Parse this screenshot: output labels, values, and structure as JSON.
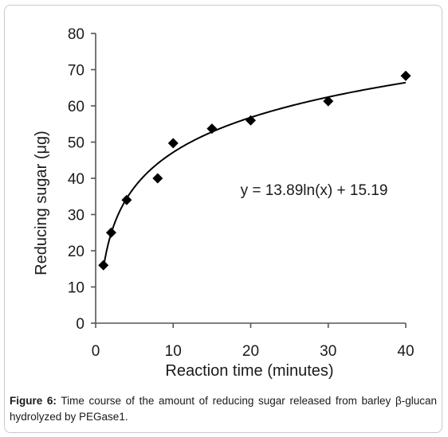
{
  "chart_data": {
    "type": "scatter",
    "x": [
      1,
      2,
      4,
      8,
      10,
      15,
      20,
      30,
      40
    ],
    "y": [
      16,
      25,
      34,
      40,
      49.7,
      53.7,
      56,
      61.3,
      68.3
    ],
    "trendline": {
      "type": "logarithmic",
      "a": 13.89,
      "b": 15.19,
      "equation": "y = 13.89ln(x) + 15.19"
    },
    "xlabel": "Reaction time (minutes)",
    "ylabel": "Reducing sugar (μg)",
    "xlim": [
      0,
      40
    ],
    "ylim": [
      0,
      80
    ],
    "xticks": [
      0,
      10,
      20,
      30,
      40
    ],
    "yticks": [
      0,
      10,
      20,
      30,
      40,
      50,
      60,
      70,
      80
    ],
    "grid": false,
    "marker": "diamond",
    "colors": {
      "marker": "#000000",
      "line": "#000000"
    }
  },
  "caption": {
    "label": "Figure 6:",
    "text": " Time course of the amount of reducing sugar released from barley β-glucan hydrolyzed by PEGase1."
  }
}
